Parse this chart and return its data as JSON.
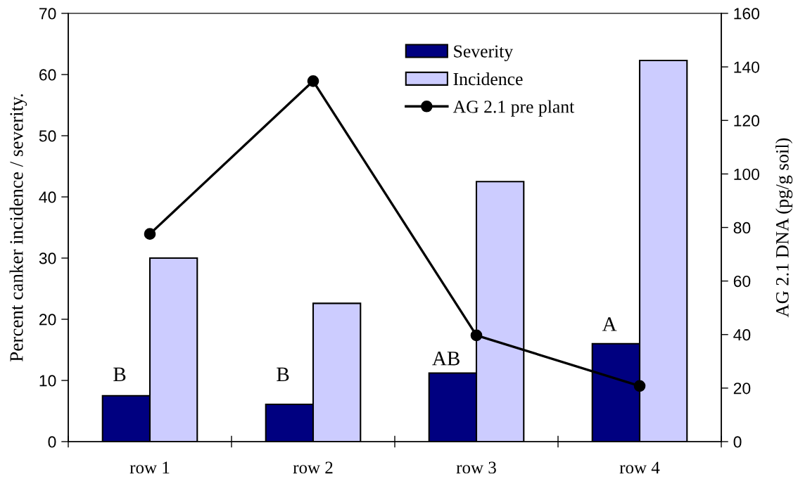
{
  "chart_data": {
    "type": "bar",
    "categories": [
      "row 1",
      "row 2",
      "row 3",
      "row 4"
    ],
    "series": [
      {
        "name": "Severity",
        "color": "#000080",
        "values": [
          7.5,
          6.1,
          11.2,
          16.0
        ]
      },
      {
        "name": "Incidence",
        "color": "#ccccff",
        "values": [
          30.0,
          22.6,
          42.5,
          62.3
        ]
      },
      {
        "name": "AG 2.1 pre plant",
        "type": "line",
        "color": "#000000",
        "axis": "y2",
        "marker": "circle",
        "line_style": "solid",
        "values": [
          77.6,
          134.7,
          39.7,
          20.8
        ]
      }
    ],
    "ylabel": "Percent canker incidence / severity.",
    "y2label": "AG 2.1 DNA (pg/g soil)",
    "ylim": [
      0,
      70
    ],
    "yticks": [
      0,
      10,
      20,
      30,
      40,
      50,
      60,
      70
    ],
    "y2lim": [
      0,
      160
    ],
    "y2ticks": [
      0,
      20,
      40,
      60,
      80,
      100,
      120,
      140,
      160
    ],
    "legend": "top right",
    "grid": false,
    "annotations": [
      {
        "text": "B",
        "x": "row 1",
        "y": 10.7
      },
      {
        "text": "B",
        "x": "row 2",
        "y": 10.7
      },
      {
        "text": "AB",
        "x": "row 3",
        "y": 13.3
      },
      {
        "text": "A",
        "x": "row 4",
        "y": 18.9
      }
    ]
  }
}
